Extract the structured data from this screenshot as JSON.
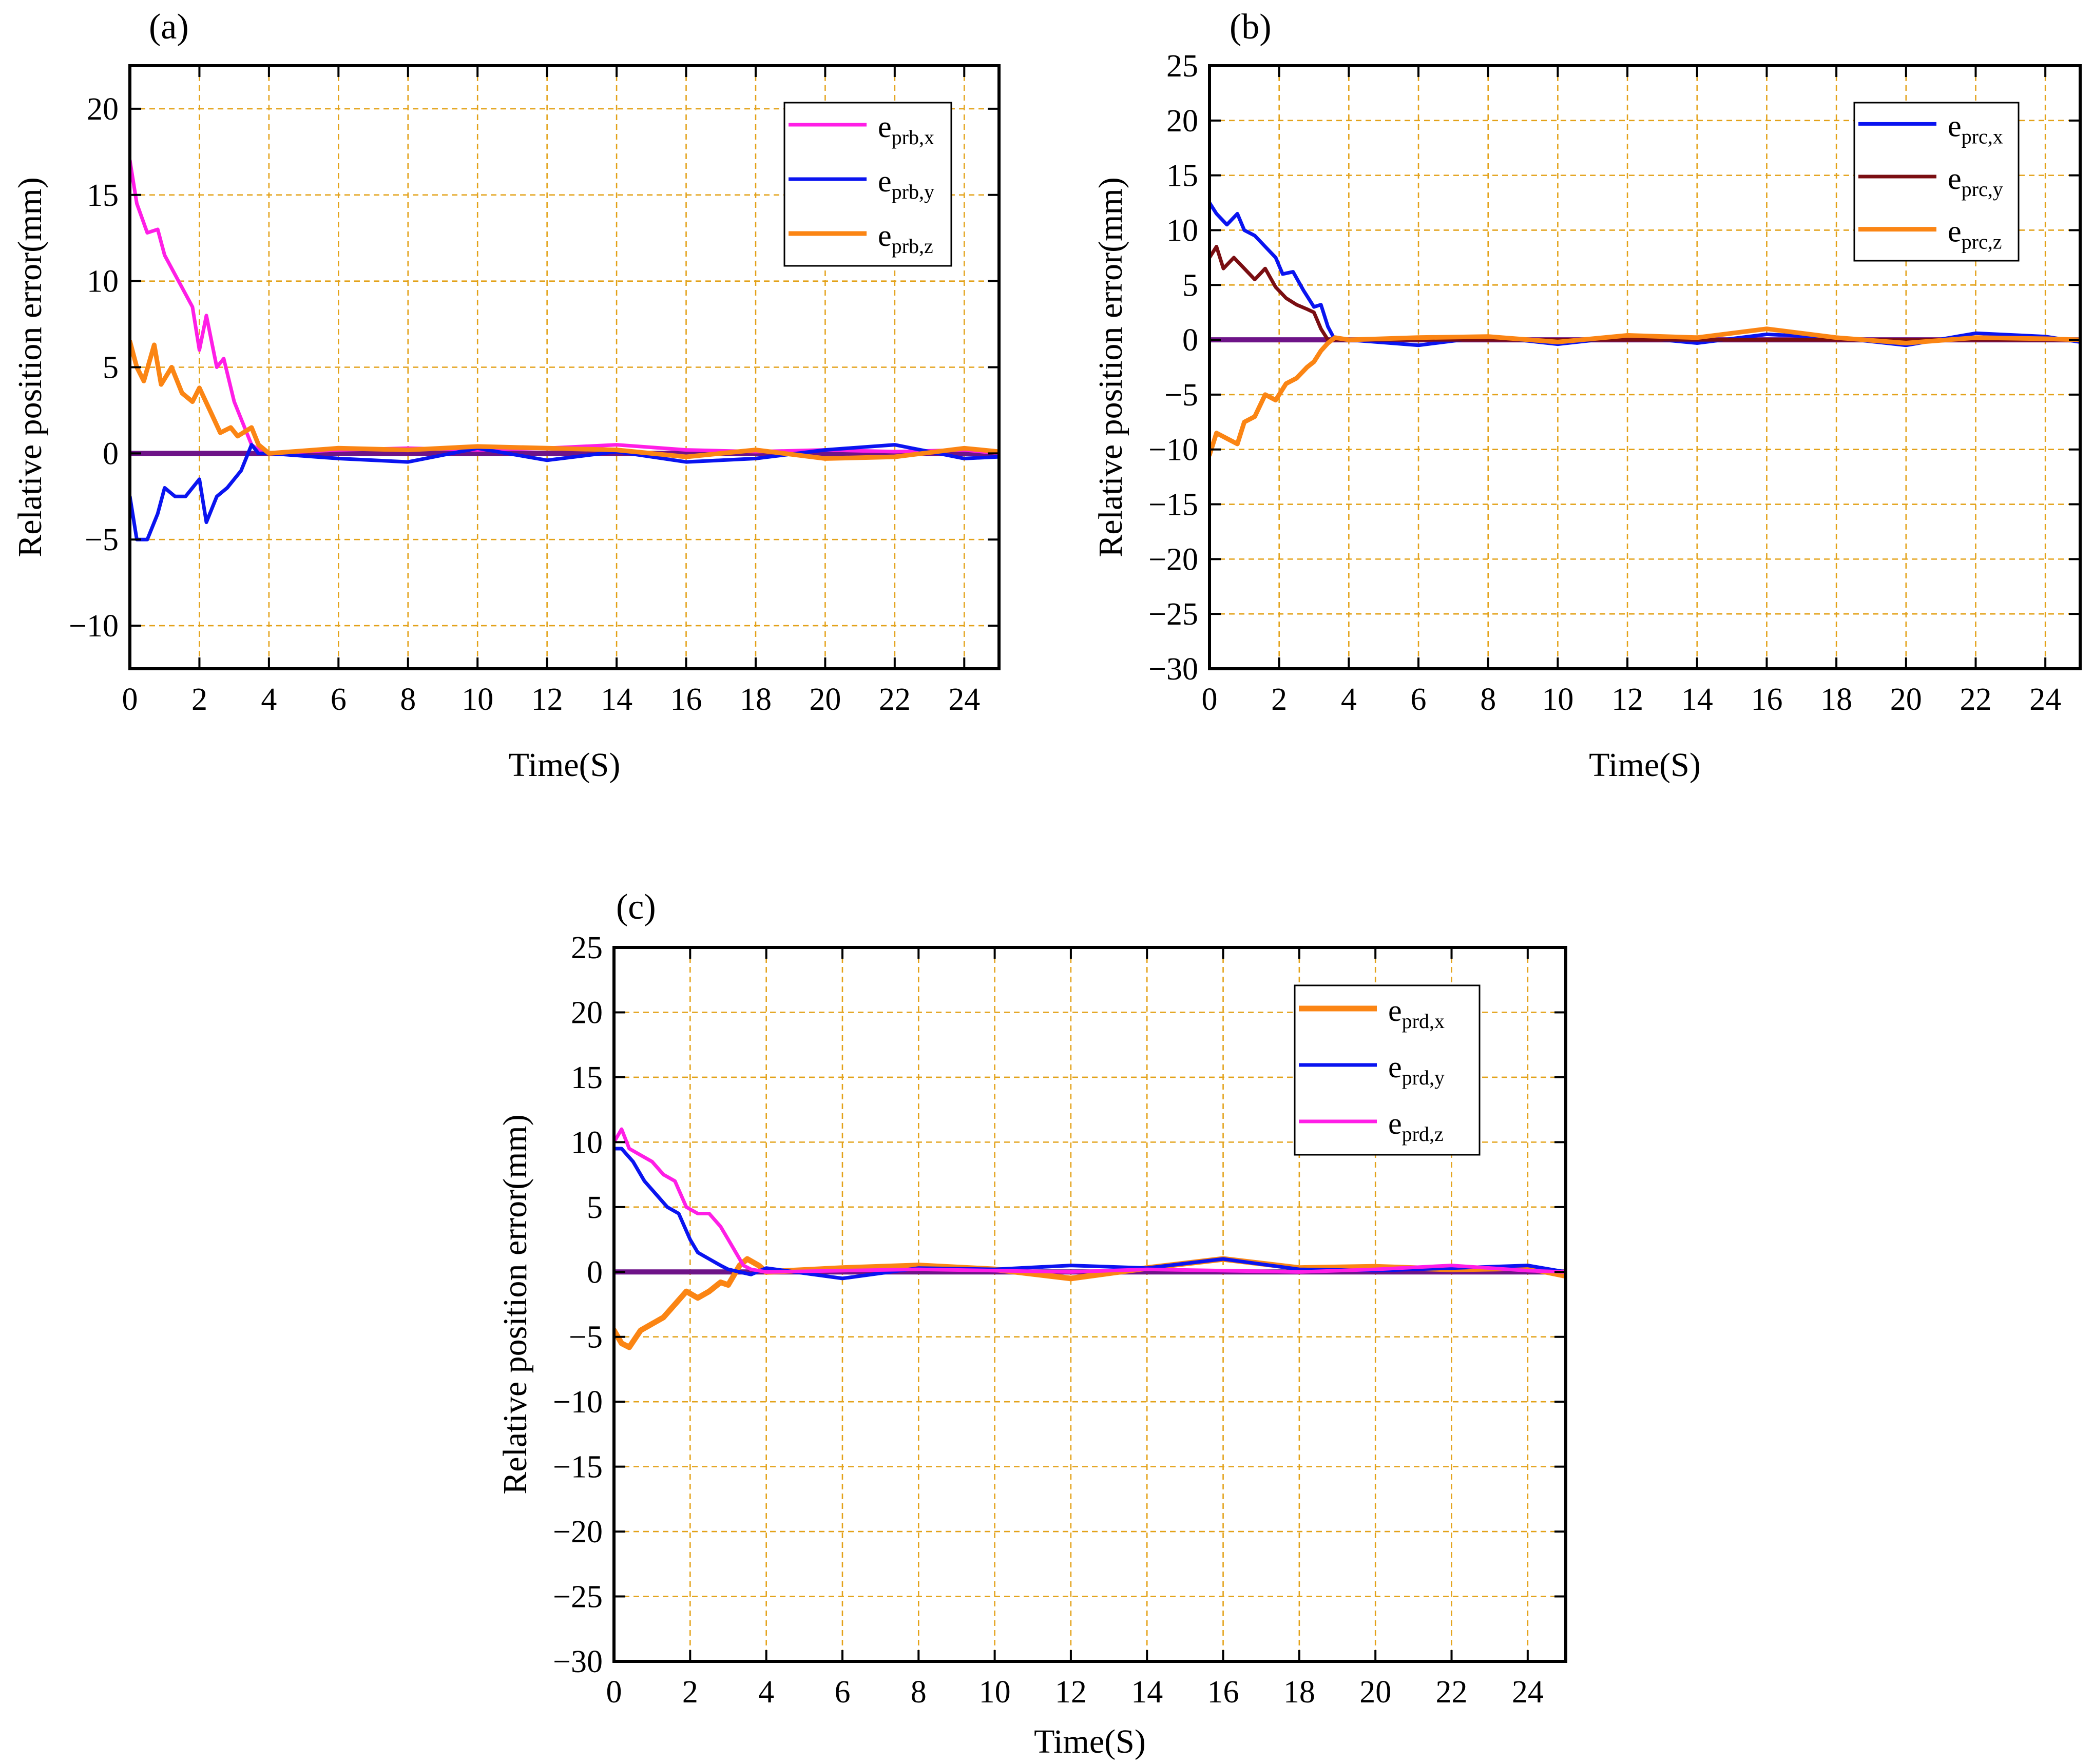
{
  "chart_data": [
    {
      "type": "line",
      "panel_label": "(a)",
      "xlabel": "Time(S)",
      "ylabel": "Relative position error(mm)",
      "xlim": [
        0,
        25
      ],
      "ylim": [
        -12.5,
        22.5
      ],
      "xticks": [
        0,
        2,
        4,
        6,
        8,
        10,
        12,
        14,
        16,
        18,
        20,
        22,
        24
      ],
      "yticks": [
        -10,
        -5,
        0,
        5,
        10,
        15,
        20
      ],
      "grid": true,
      "legend_position": "top-right",
      "series": [
        {
          "name": "e",
          "subscript": "prb,x",
          "color": "#FF1EE6",
          "width": 7,
          "x": [
            0,
            0.2,
            0.5,
            0.8,
            1.0,
            1.4,
            1.8,
            2.0,
            2.2,
            2.5,
            2.7,
            3.0,
            3.2,
            3.5,
            3.7,
            4,
            6,
            8,
            10,
            12,
            14,
            16,
            18,
            20,
            22,
            24,
            25
          ],
          "y": [
            17,
            14.5,
            12.8,
            13,
            11.5,
            10,
            8.5,
            6,
            8,
            5,
            5.5,
            3,
            2,
            0.5,
            0.2,
            0,
            0.2,
            0.3,
            0.2,
            0.3,
            0.5,
            0.2,
            0.1,
            0.2,
            0.1,
            0.2,
            0
          ]
        },
        {
          "name": "e",
          "subscript": "prb,y",
          "color": "#0A14F0",
          "width": 7,
          "x": [
            0,
            0.2,
            0.5,
            0.8,
            1.0,
            1.3,
            1.6,
            2.0,
            2.2,
            2.5,
            2.8,
            3.0,
            3.2,
            3.5,
            3.7,
            4,
            6,
            8,
            10,
            12,
            14,
            16,
            18,
            20,
            22,
            24,
            25
          ],
          "y": [
            -2.5,
            -5,
            -5,
            -3.5,
            -2,
            -2.5,
            -2.5,
            -1.5,
            -4,
            -2.5,
            -2,
            -1.5,
            -1,
            0.5,
            0,
            0,
            -0.3,
            -0.5,
            0.3,
            -0.4,
            0.1,
            -0.5,
            -0.3,
            0.2,
            0.5,
            -0.3,
            -0.2
          ]
        },
        {
          "name": "e",
          "subscript": "prb,z",
          "color": "#FB8514",
          "width": 9,
          "x": [
            0,
            0.2,
            0.4,
            0.7,
            0.9,
            1.2,
            1.5,
            1.8,
            2.0,
            2.3,
            2.6,
            2.9,
            3.1,
            3.5,
            3.7,
            4,
            6,
            8,
            10,
            12,
            14,
            16,
            18,
            20,
            22,
            24,
            25
          ],
          "y": [
            6.5,
            5,
            4.2,
            6.3,
            4,
            5,
            3.5,
            3,
            3.8,
            2.5,
            1.2,
            1.5,
            1,
            1.5,
            0.5,
            0,
            0.3,
            0.2,
            0.4,
            0.3,
            0.2,
            -0.2,
            0.2,
            -0.3,
            -0.2,
            0.3,
            0.1
          ]
        },
        {
          "name": "",
          "color": "#6E1488",
          "width": 10,
          "x": [
            0,
            25
          ],
          "y": [
            0,
            0
          ]
        }
      ]
    },
    {
      "type": "line",
      "panel_label": "(b)",
      "xlabel": "Time(S)",
      "ylabel": "Relative position error(mm)",
      "xlim": [
        0,
        25
      ],
      "ylim": [
        -30,
        25
      ],
      "xticks": [
        0,
        2,
        4,
        6,
        8,
        10,
        12,
        14,
        16,
        18,
        20,
        22,
        24
      ],
      "yticks": [
        -30,
        -25,
        -20,
        -15,
        -10,
        -5,
        0,
        5,
        10,
        15,
        20,
        25
      ],
      "grid": true,
      "legend_position": "top-right",
      "series": [
        {
          "name": "e",
          "subscript": "prc,x",
          "color": "#0A14F0",
          "width": 7,
          "x": [
            0,
            0.2,
            0.5,
            0.8,
            1.0,
            1.3,
            1.6,
            1.9,
            2.1,
            2.4,
            2.7,
            3.0,
            3.2,
            3.4,
            3.6,
            4,
            6,
            8,
            10,
            12,
            14,
            16,
            18,
            20,
            22,
            24,
            25
          ],
          "y": [
            12.5,
            11.5,
            10.5,
            11.5,
            10,
            9.5,
            8.5,
            7.5,
            6,
            6.2,
            4.5,
            3,
            3.2,
            1.2,
            0,
            0,
            -0.5,
            0.3,
            -0.4,
            0.3,
            -0.3,
            0.5,
            0.2,
            -0.5,
            0.6,
            0.3,
            -0.2
          ]
        },
        {
          "name": "e",
          "subscript": "prc,y",
          "color": "#7A0E12",
          "width": 7,
          "x": [
            0,
            0.2,
            0.4,
            0.7,
            1.0,
            1.3,
            1.6,
            1.9,
            2.2,
            2.5,
            2.8,
            3.0,
            3.2,
            3.4,
            4,
            6,
            8,
            10,
            12,
            14,
            16,
            18,
            20,
            22,
            24,
            25
          ],
          "y": [
            7.5,
            8.5,
            6.5,
            7.5,
            6.5,
            5.5,
            6.5,
            4.8,
            3.8,
            3.2,
            2.8,
            2.5,
            1,
            0,
            0,
            0,
            0,
            0,
            0,
            0,
            0,
            0,
            0,
            0,
            0,
            0
          ]
        },
        {
          "name": "e",
          "subscript": "prc,z",
          "color": "#FB8514",
          "width": 9,
          "x": [
            0,
            0.2,
            0.5,
            0.8,
            1.0,
            1.3,
            1.6,
            1.9,
            2.2,
            2.5,
            2.8,
            3.0,
            3.2,
            3.4,
            3.6,
            4,
            6,
            8,
            10,
            12,
            14,
            16,
            18,
            20,
            22,
            24,
            25
          ],
          "y": [
            -10.5,
            -8.5,
            -9,
            -9.5,
            -7.5,
            -7,
            -5,
            -5.5,
            -4,
            -3.5,
            -2.5,
            -2,
            -1,
            -0.3,
            0.2,
            0,
            0.2,
            0.3,
            -0.2,
            0.4,
            0.2,
            1,
            0.2,
            -0.3,
            0.2,
            0.1,
            0
          ]
        },
        {
          "name": "",
          "color": "#6E1488",
          "width": 10,
          "x": [
            0,
            25
          ],
          "y": [
            0,
            0
          ]
        }
      ]
    },
    {
      "type": "line",
      "panel_label": "(c)",
      "xlabel": "Time(S)",
      "ylabel": "Relative position error(mm)",
      "xlim": [
        0,
        25
      ],
      "ylim": [
        -30,
        25
      ],
      "xticks": [
        0,
        2,
        4,
        6,
        8,
        10,
        12,
        14,
        16,
        18,
        20,
        22,
        24
      ],
      "yticks": [
        -30,
        -25,
        -20,
        -15,
        -10,
        -5,
        0,
        5,
        10,
        15,
        20,
        25
      ],
      "grid": true,
      "legend_position": "top-right",
      "series": [
        {
          "name": "e",
          "subscript": "prd,x",
          "color": "#FB8514",
          "width": 11,
          "x": [
            0,
            0.2,
            0.4,
            0.7,
            1.0,
            1.3,
            1.6,
            1.9,
            2.2,
            2.5,
            2.8,
            3.0,
            3.3,
            3.5,
            3.8,
            4,
            6,
            8,
            10,
            12,
            14,
            16,
            18,
            20,
            22,
            24,
            25
          ],
          "y": [
            -4.5,
            -5.5,
            -5.8,
            -4.5,
            -4,
            -3.5,
            -2.5,
            -1.5,
            -2,
            -1.5,
            -0.8,
            -1,
            0.5,
            1,
            0.5,
            0,
            0.3,
            0.5,
            0.2,
            -0.5,
            0.3,
            1,
            0.3,
            0.4,
            0.2,
            0.3,
            -0.3
          ]
        },
        {
          "name": "e",
          "subscript": "prd,y",
          "color": "#0A14F0",
          "width": 7,
          "x": [
            0,
            0.2,
            0.5,
            0.8,
            1.1,
            1.4,
            1.7,
            2.0,
            2.2,
            2.5,
            2.8,
            3.0,
            3.3,
            3.6,
            4,
            6,
            8,
            10,
            12,
            14,
            16,
            18,
            20,
            22,
            24,
            25
          ],
          "y": [
            9.5,
            9.5,
            8.5,
            7,
            6,
            5,
            4.5,
            2.5,
            1.5,
            1,
            0.5,
            0.2,
            0,
            -0.2,
            0.3,
            -0.5,
            0.3,
            0.2,
            0.5,
            0.3,
            1,
            0.2,
            0.1,
            0.3,
            0.5,
            0
          ]
        },
        {
          "name": "e",
          "subscript": "prd,z",
          "color": "#FF1EE6",
          "width": 7,
          "x": [
            0,
            0.2,
            0.4,
            0.7,
            1.0,
            1.3,
            1.6,
            1.9,
            2.2,
            2.5,
            2.8,
            3.0,
            3.2,
            3.4,
            3.6,
            4,
            6,
            8,
            10,
            12,
            14,
            16,
            18,
            20,
            22,
            24,
            25
          ],
          "y": [
            10,
            11,
            9.5,
            9,
            8.5,
            7.5,
            7,
            5,
            4.5,
            4.5,
            3.5,
            2.5,
            1.5,
            0.5,
            0.2,
            0,
            0.1,
            0.2,
            0.1,
            0,
            0.2,
            0.1,
            0,
            0.2,
            0.5,
            0.1,
            0
          ]
        },
        {
          "name": "",
          "color": "#6E1488",
          "width": 10,
          "x": [
            0,
            25
          ],
          "y": [
            0,
            0
          ]
        }
      ]
    }
  ]
}
